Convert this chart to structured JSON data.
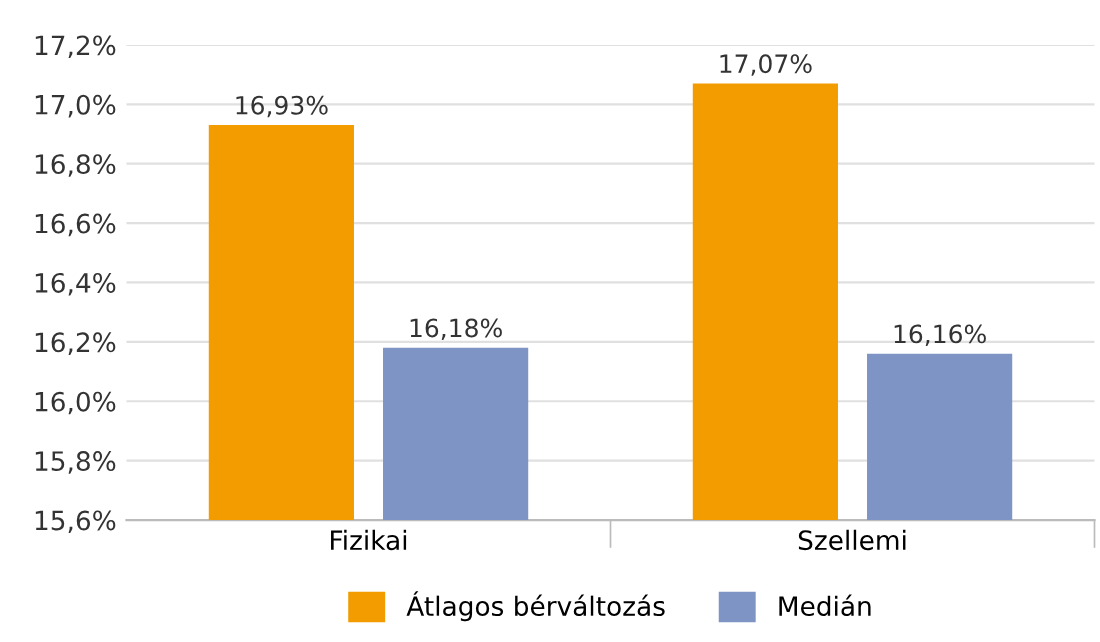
{
  "chart_data": {
    "type": "bar",
    "categories": [
      "Fizikai",
      "Szellemi"
    ],
    "series": [
      {
        "name": "Átlagos bérváltozás",
        "color": "#f39c00",
        "values": [
          16.93,
          17.07
        ],
        "value_labels": [
          "16,93%",
          "17,07%"
        ]
      },
      {
        "name": "Medián",
        "color": "#7e94c4",
        "values": [
          16.18,
          16.16
        ],
        "value_labels": [
          "16,18%",
          "16,16%"
        ]
      }
    ],
    "ylim": [
      15.6,
      17.2
    ],
    "yticks": [
      {
        "value": 15.6,
        "label": "15,6%"
      },
      {
        "value": 15.8,
        "label": "15,8%"
      },
      {
        "value": 16.0,
        "label": "16,0%"
      },
      {
        "value": 16.2,
        "label": "16,2%"
      },
      {
        "value": 16.4,
        "label": "16,4%"
      },
      {
        "value": 16.6,
        "label": "16,6%"
      },
      {
        "value": 16.8,
        "label": "16,8%"
      },
      {
        "value": 17.0,
        "label": "17,0%"
      },
      {
        "value": 17.2,
        "label": "17,2%"
      }
    ],
    "grid": "y",
    "legend": "bottom"
  }
}
